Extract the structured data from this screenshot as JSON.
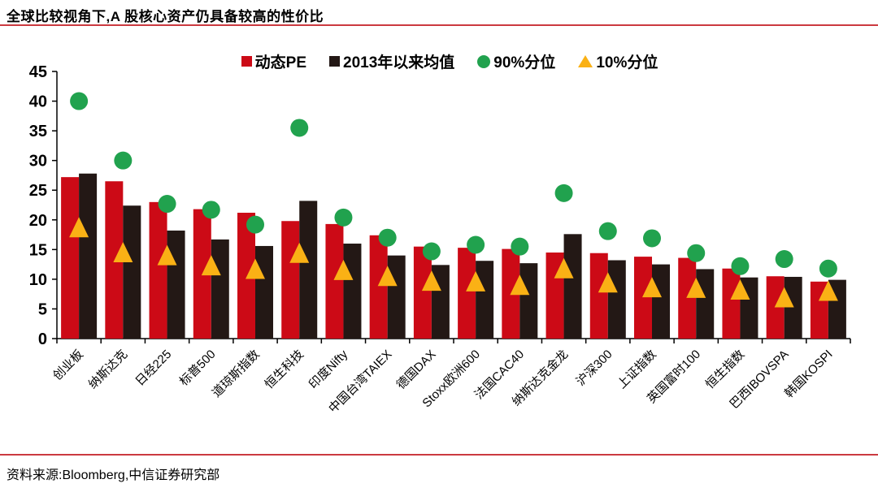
{
  "page": {
    "title": "全球比较视角下,A 股核心资产仍具备较高的性价比",
    "source": "资料来源:Bloomberg,中信证券研究部"
  },
  "colors": {
    "bar_pe": "#CC0A16",
    "bar_mean": "#231815",
    "marker_p90": "#21A24E",
    "marker_p10": "#FAB115",
    "rule_red": "#CB3A40",
    "axis": "#000000"
  },
  "legend": {
    "items": [
      {
        "label": "动态PE",
        "marker": "square",
        "color": "#CC0A16"
      },
      {
        "label": "2013年以来均值",
        "marker": "square",
        "color": "#231815"
      },
      {
        "label": "90%分位",
        "marker": "circle",
        "color": "#21A24E"
      },
      {
        "label": "10%分位",
        "marker": "triangle",
        "color": "#FAB115"
      }
    ]
  },
  "chart_data": {
    "type": "bar",
    "title": "全球比较视角下,A 股核心资产仍具备较高的性价比",
    "xlabel": "",
    "ylabel": "",
    "ylim": [
      0,
      45
    ],
    "ytick_step": 5,
    "grid": false,
    "legend_position": "top",
    "categories": [
      "创业板",
      "纳斯达克",
      "日经225",
      "标普500",
      "道琼斯指数",
      "恒生科技",
      "印度Nifty",
      "中国台湾TAIEX",
      "德国DAX",
      "Stoxx欧洲600",
      "法国CAC40",
      "纳斯达克金龙",
      "沪深300",
      "上证指数",
      "英国富时100",
      "恒生指数",
      "巴西IBOVSPA",
      "韩国KOSPI"
    ],
    "series": [
      {
        "name": "动态PE",
        "type": "bar",
        "color": "#CC0A16",
        "values": [
          27.2,
          26.5,
          23.0,
          21.8,
          21.2,
          19.8,
          19.3,
          17.4,
          15.5,
          15.3,
          15.1,
          14.5,
          14.4,
          13.8,
          13.6,
          11.8,
          10.5,
          9.6
        ]
      },
      {
        "name": "2013年以来均值",
        "type": "bar",
        "color": "#231815",
        "values": [
          27.8,
          22.4,
          18.2,
          16.7,
          15.6,
          23.2,
          16.0,
          14.0,
          12.4,
          13.1,
          12.7,
          17.6,
          13.2,
          12.5,
          11.7,
          10.3,
          10.4,
          9.9
        ]
      },
      {
        "name": "90%分位",
        "type": "scatter-circle",
        "color": "#21A24E",
        "values": [
          40.0,
          30.0,
          22.7,
          21.7,
          19.2,
          35.5,
          20.4,
          17.0,
          14.7,
          15.8,
          15.5,
          24.5,
          18.1,
          16.9,
          14.4,
          12.2,
          13.4,
          11.8
        ]
      },
      {
        "name": "10%分位",
        "type": "scatter-triangle",
        "color": "#FAB115",
        "values": [
          18.7,
          14.5,
          14.0,
          12.3,
          11.7,
          14.4,
          11.5,
          10.5,
          9.7,
          9.6,
          9.0,
          11.8,
          9.4,
          8.6,
          8.5,
          8.2,
          6.9,
          8.0
        ]
      }
    ]
  }
}
